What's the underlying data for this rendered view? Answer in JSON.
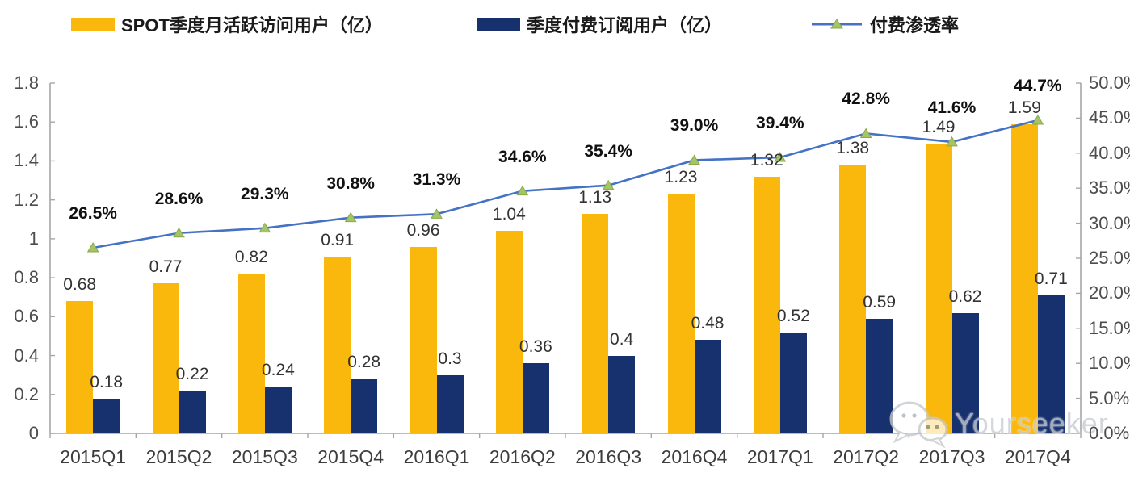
{
  "legend": [
    {
      "label": "SPOT季度月活跃访问用户（亿）",
      "color": "#FBB80C",
      "type": "bar"
    },
    {
      "label": "季度付费订阅用户（亿）",
      "color": "#17316F",
      "type": "bar"
    },
    {
      "label": "付费渗透率",
      "color": "#4472C4",
      "marker_color": "#A5C464",
      "type": "line"
    }
  ],
  "chart_data": {
    "type": "combo-bar-line",
    "categories": [
      "2015Q1",
      "2015Q2",
      "2015Q3",
      "2015Q4",
      "2016Q1",
      "2016Q2",
      "2016Q3",
      "2016Q4",
      "2017Q1",
      "2017Q2",
      "2017Q3",
      "2017Q4"
    ],
    "series": [
      {
        "name": "SPOT季度月活跃访问用户（亿）",
        "type": "bar",
        "axis": "left",
        "color": "#FBB80C",
        "values": [
          0.68,
          0.77,
          0.82,
          0.91,
          0.96,
          1.04,
          1.13,
          1.23,
          1.32,
          1.38,
          1.49,
          1.59
        ],
        "labels": [
          "0.68",
          "0.77",
          "0.82",
          "0.91",
          "0.96",
          "1.04",
          "1.13",
          "1.23",
          "1.32",
          "1.38",
          "1.49",
          "1.59"
        ]
      },
      {
        "name": "季度付费订阅用户（亿）",
        "type": "bar",
        "axis": "left",
        "color": "#17316F",
        "values": [
          0.18,
          0.22,
          0.24,
          0.28,
          0.3,
          0.36,
          0.4,
          0.48,
          0.52,
          0.59,
          0.62,
          0.71
        ],
        "labels": [
          "0.18",
          "0.22",
          "0.24",
          "0.28",
          "0.3",
          "0.36",
          "0.4",
          "0.48",
          "0.52",
          "0.59",
          "0.62",
          "0.71"
        ]
      },
      {
        "name": "付费渗透率",
        "type": "line",
        "axis": "right",
        "color": "#4472C4",
        "marker": "triangle",
        "marker_color": "#A5C464",
        "values": [
          26.5,
          28.6,
          29.3,
          30.8,
          31.3,
          34.6,
          35.4,
          39.0,
          39.4,
          42.8,
          41.6,
          44.7
        ],
        "labels": [
          "26.5%",
          "28.6%",
          "29.3%",
          "30.8%",
          "31.3%",
          "34.6%",
          "35.4%",
          "39.0%",
          "39.4%",
          "42.8%",
          "41.6%",
          "44.7%"
        ]
      }
    ],
    "left_axis": {
      "min": 0,
      "max": 1.8,
      "step": 0.2,
      "ticks": [
        "0",
        "0.2",
        "0.4",
        "0.6",
        "0.8",
        "1",
        "1.2",
        "1.4",
        "1.6",
        "1.8"
      ]
    },
    "right_axis": {
      "min": 0,
      "max": 50,
      "step": 5,
      "ticks": [
        "0.0%",
        "5.0%",
        "10.0%",
        "15.0%",
        "20.0%",
        "25.0%",
        "30.0%",
        "35.0%",
        "40.0%",
        "45.0%",
        "50.0%"
      ]
    },
    "grid": false,
    "legend_position": "top",
    "axis_color": "#A6A6A6"
  },
  "watermark": {
    "text": "Yourseeker",
    "icon": "wechat-icon"
  }
}
